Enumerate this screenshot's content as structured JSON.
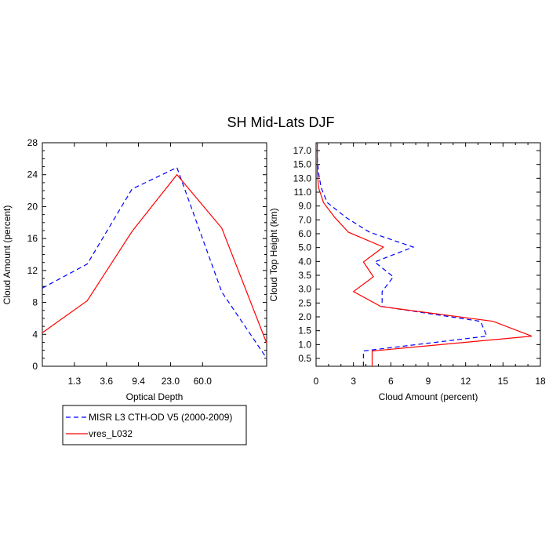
{
  "figure_title": "SH Mid-Lats DJF",
  "colors": {
    "observation": "#0000ff",
    "model": "#ff0000",
    "frame": "#000000"
  },
  "legend": {
    "entries": [
      {
        "label": "MISR L3 CTH-OD V5 (2000-2009)",
        "style": "dashed",
        "color": "#0000ff"
      },
      {
        "label": "vres_L032",
        "style": "solid",
        "color": "#ff0000"
      }
    ],
    "placement": "bottom-left, below charts"
  },
  "chart_data": [
    {
      "type": "line",
      "title": "",
      "xlabel": "Optical Depth",
      "ylabel": "Cloud Amount (percent)",
      "x_tick_labels": [
        "1.3",
        "3.6",
        "9.4",
        "23.0",
        "60.0"
      ],
      "y_ticks": [
        0,
        4,
        8,
        12,
        16,
        20,
        24,
        28
      ],
      "ylim": [
        0,
        28
      ],
      "x_bins": 7,
      "series": [
        {
          "name": "MISR L3 CTH-OD V5 (2000-2009)",
          "style": "dashed",
          "color": "#0000ff",
          "values": [
            9.8,
            12.8,
            22.2,
            24.9,
            9.3,
            1.0
          ]
        },
        {
          "name": "vres_L032",
          "style": "solid",
          "color": "#ff0000",
          "values": [
            4.2,
            8.2,
            16.9,
            24.0,
            17.3,
            2.9
          ]
        }
      ],
      "grid": false
    },
    {
      "type": "line",
      "title": "",
      "xlabel": "Cloud Amount (percent)",
      "ylabel": "Cloud Top Height (km)",
      "x_ticks": [
        0,
        3,
        6,
        9,
        12,
        15,
        18
      ],
      "xlim": [
        0,
        18
      ],
      "y_tick_labels": [
        "0.5",
        "1.0",
        "1.5",
        "2.0",
        "2.5",
        "3.0",
        "3.5",
        "4.0",
        "5.0",
        "6.0",
        "7.0",
        "9.0",
        "11.0",
        "13.0",
        "15.0",
        "17.0"
      ],
      "series": [
        {
          "name": "MISR L3 CTH-OD V5 (2000-2009)",
          "style": "dashed",
          "color": "#0000ff",
          "values": [
            3.8,
            13.7,
            13.2,
            5.3,
            5.3,
            6.2,
            4.7,
            7.8,
            4.3,
            2.4,
            0.9,
            0.4,
            0.2,
            0.1
          ]
        },
        {
          "name": "vres_L032",
          "style": "solid",
          "color": "#ff0000",
          "values": [
            4.5,
            17.3,
            14.2,
            5.2,
            3.0,
            4.6,
            3.8,
            5.4,
            2.6,
            1.5,
            0.6,
            0.2,
            0.1,
            0.1
          ]
        }
      ],
      "grid": false
    }
  ]
}
